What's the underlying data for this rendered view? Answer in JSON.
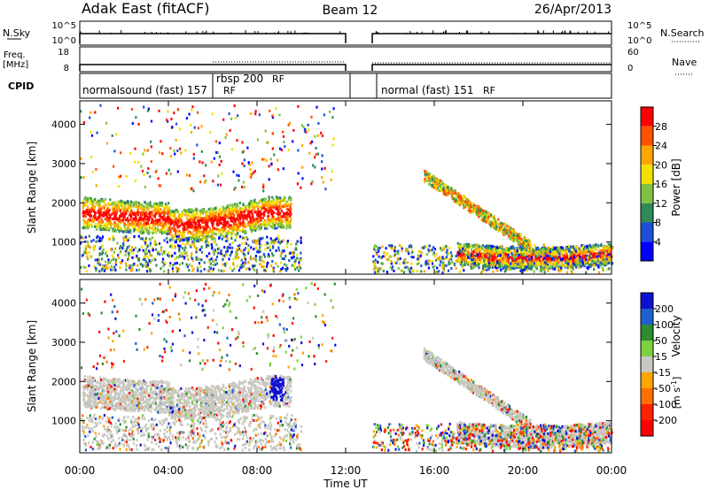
{
  "header": {
    "station": "Adak East (fitACF)",
    "beam": "Beam 12",
    "date": "26/Apr/2013"
  },
  "top_panels": {
    "nsky_label": "N.Sky",
    "nsky_ticks": [
      "10^5",
      "10^0"
    ],
    "nsearch_label": "N.Search",
    "nsearch_ticks": [
      "10^5",
      "10^0"
    ],
    "freq_label": "Freq.",
    "freq_unit": "[MHz]",
    "freq_ticks": [
      "18",
      "8"
    ],
    "nave_label": "Nave",
    "nave_ticks": [
      "60",
      "0"
    ],
    "cpid_label": "CPID",
    "cpid_segments": [
      {
        "text": "normalsound (fast) 157",
        "suffix": "RF"
      },
      {
        "text": "rbsp 200",
        "suffix": "RF"
      },
      {
        "text": "normal (fast) 151",
        "suffix": "RF"
      }
    ]
  },
  "chart_data": [
    {
      "type": "heatmap",
      "name": "power",
      "xlabel": "Time UT",
      "ylabel": "Slant Range [km]",
      "x_ticks": [
        "00:00",
        "04:00",
        "08:00",
        "12:00",
        "16:00",
        "20:00",
        "00:00"
      ],
      "x_range_hours": [
        0,
        24
      ],
      "data_gap_hours": [
        12.0,
        13.2
      ],
      "y_range_km": [
        180,
        4600
      ],
      "y_ticks": [
        1000,
        2000,
        3000,
        4000
      ],
      "colorbar": {
        "label": "Power [dB]",
        "ticks": [
          4,
          8,
          12,
          16,
          20,
          24,
          28
        ]
      },
      "colors": [
        "#0000ff",
        "#1f4fd8",
        "#2e8b57",
        "#7fc241",
        "#f2e000",
        "#ffa500",
        "#ff5000",
        "#ff0000"
      ]
    },
    {
      "type": "heatmap",
      "name": "velocity",
      "xlabel": "Time UT",
      "ylabel": "Slant Range [km]",
      "x_ticks": [
        "00:00",
        "04:00",
        "08:00",
        "12:00",
        "16:00",
        "20:00",
        "00:00"
      ],
      "x_range_hours": [
        0,
        24
      ],
      "data_gap_hours": [
        12.0,
        13.2
      ],
      "y_range_km": [
        180,
        4600
      ],
      "y_ticks": [
        1000,
        2000,
        3000,
        4000
      ],
      "colorbar": {
        "label": "Velocity",
        "unit_base": "m s",
        "unit_exp": "-1",
        "ticks": [
          200,
          100,
          50,
          15,
          -15,
          -50,
          -100,
          -200
        ]
      },
      "colors": [
        "#1010d0",
        "#1f5fd0",
        "#2e8b2e",
        "#7fd040",
        "#c8c8c0",
        "#ffa500",
        "#ff7000",
        "#ff2000",
        "#ff0000"
      ]
    }
  ]
}
